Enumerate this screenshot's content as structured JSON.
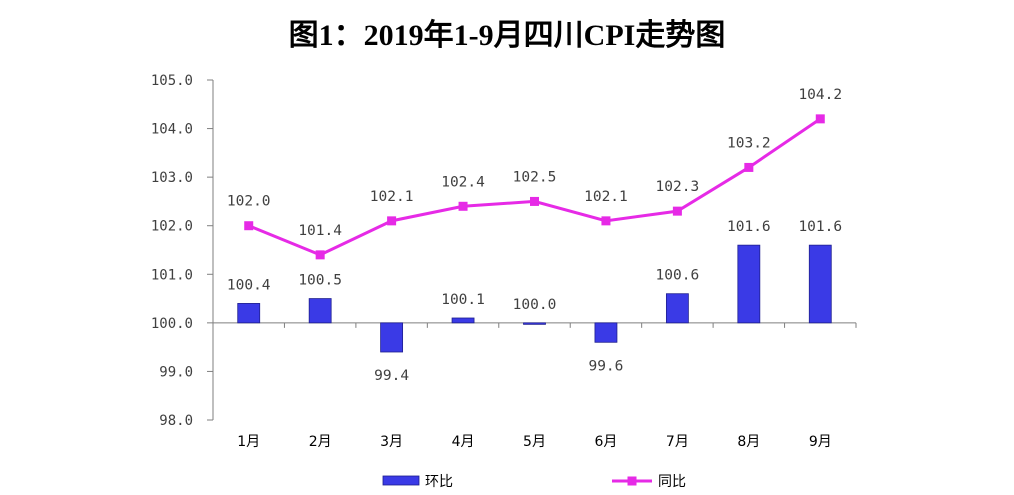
{
  "chart_data": {
    "type": "bar+line",
    "title": "图1：2019年1-9月四川CPI走势图",
    "categories": [
      "1月",
      "2月",
      "3月",
      "4月",
      "5月",
      "6月",
      "7月",
      "8月",
      "9月"
    ],
    "series": [
      {
        "name": "环比",
        "type": "bar",
        "color": "#3a3ae6",
        "values": [
          100.4,
          100.5,
          99.4,
          100.1,
          100.0,
          99.6,
          100.6,
          101.6,
          101.6
        ]
      },
      {
        "name": "同比",
        "type": "line",
        "color": "#e62ae6",
        "values": [
          102.0,
          101.4,
          102.1,
          102.4,
          102.5,
          102.1,
          102.3,
          103.2,
          104.2
        ]
      }
    ],
    "ylim": [
      98.0,
      105.0
    ],
    "yticks": [
      "98.0",
      "99.0",
      "100.0",
      "101.0",
      "102.0",
      "103.0",
      "104.0",
      "105.0"
    ],
    "bar_baseline": 100.0,
    "xlabel": "",
    "ylabel": "",
    "grid": false,
    "legend": "bottom"
  }
}
